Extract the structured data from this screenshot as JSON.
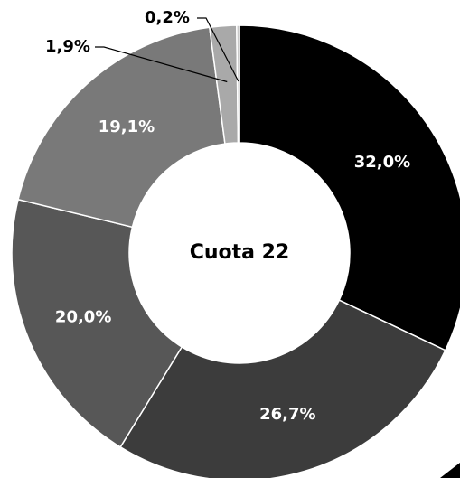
{
  "chart_data": {
    "type": "donut",
    "center_label": "Cuota 22",
    "values": [
      32.0,
      26.7,
      20.0,
      19.1,
      1.9,
      0.2
    ],
    "value_labels": [
      "32,0%",
      "26,7%",
      "20,0%",
      "19,1%",
      "1,9%",
      "0,2%"
    ],
    "colors": [
      "#000000",
      "#3c3c3c",
      "#575757",
      "#797979",
      "#a9a9a9",
      "#c9c9c9"
    ]
  }
}
